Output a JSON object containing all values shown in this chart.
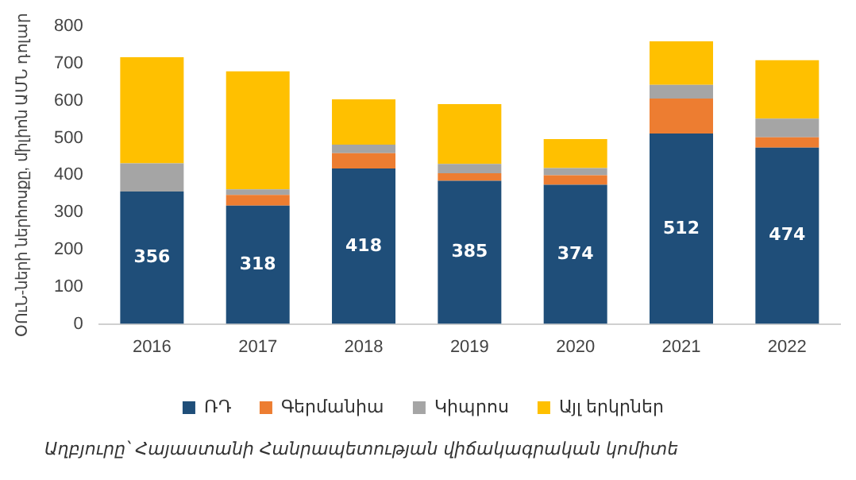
{
  "chart_data": {
    "type": "bar",
    "stacked": true,
    "ylabel": "ՕՈւՆ-ների ներհոսքը, միլիոն ԱՄՆ դոլար",
    "categories": [
      "2016",
      "2017",
      "2018",
      "2019",
      "2020",
      "2021",
      "2022"
    ],
    "series": [
      {
        "name": "ՌԴ",
        "color": "#1f4e79",
        "values": [
          356,
          318,
          418,
          385,
          374,
          512,
          474
        ],
        "value_labels": [
          "356",
          "318",
          "418",
          "385",
          "374",
          "512",
          "474"
        ]
      },
      {
        "name": "Գերմանիա",
        "color": "#ed7d31",
        "values": [
          0,
          29,
          41,
          20,
          26,
          94,
          28
        ]
      },
      {
        "name": "Կիպրոս",
        "color": "#a5a5a5",
        "values": [
          76,
          15,
          23,
          25,
          19,
          37,
          50
        ]
      },
      {
        "name": "Այլ երկրներ",
        "color": "#ffc000",
        "values": [
          285,
          317,
          122,
          161,
          78,
          117,
          157
        ]
      }
    ],
    "ylim": [
      0,
      800
    ],
    "yticks": [
      0,
      100,
      200,
      300,
      400,
      500,
      600,
      700,
      800
    ],
    "grid": false,
    "legend": "bottom",
    "annotations": [
      "Աղբյուրը՝ Հայաստանի Հանրապետության վիճակագրական կոմիտե"
    ]
  }
}
